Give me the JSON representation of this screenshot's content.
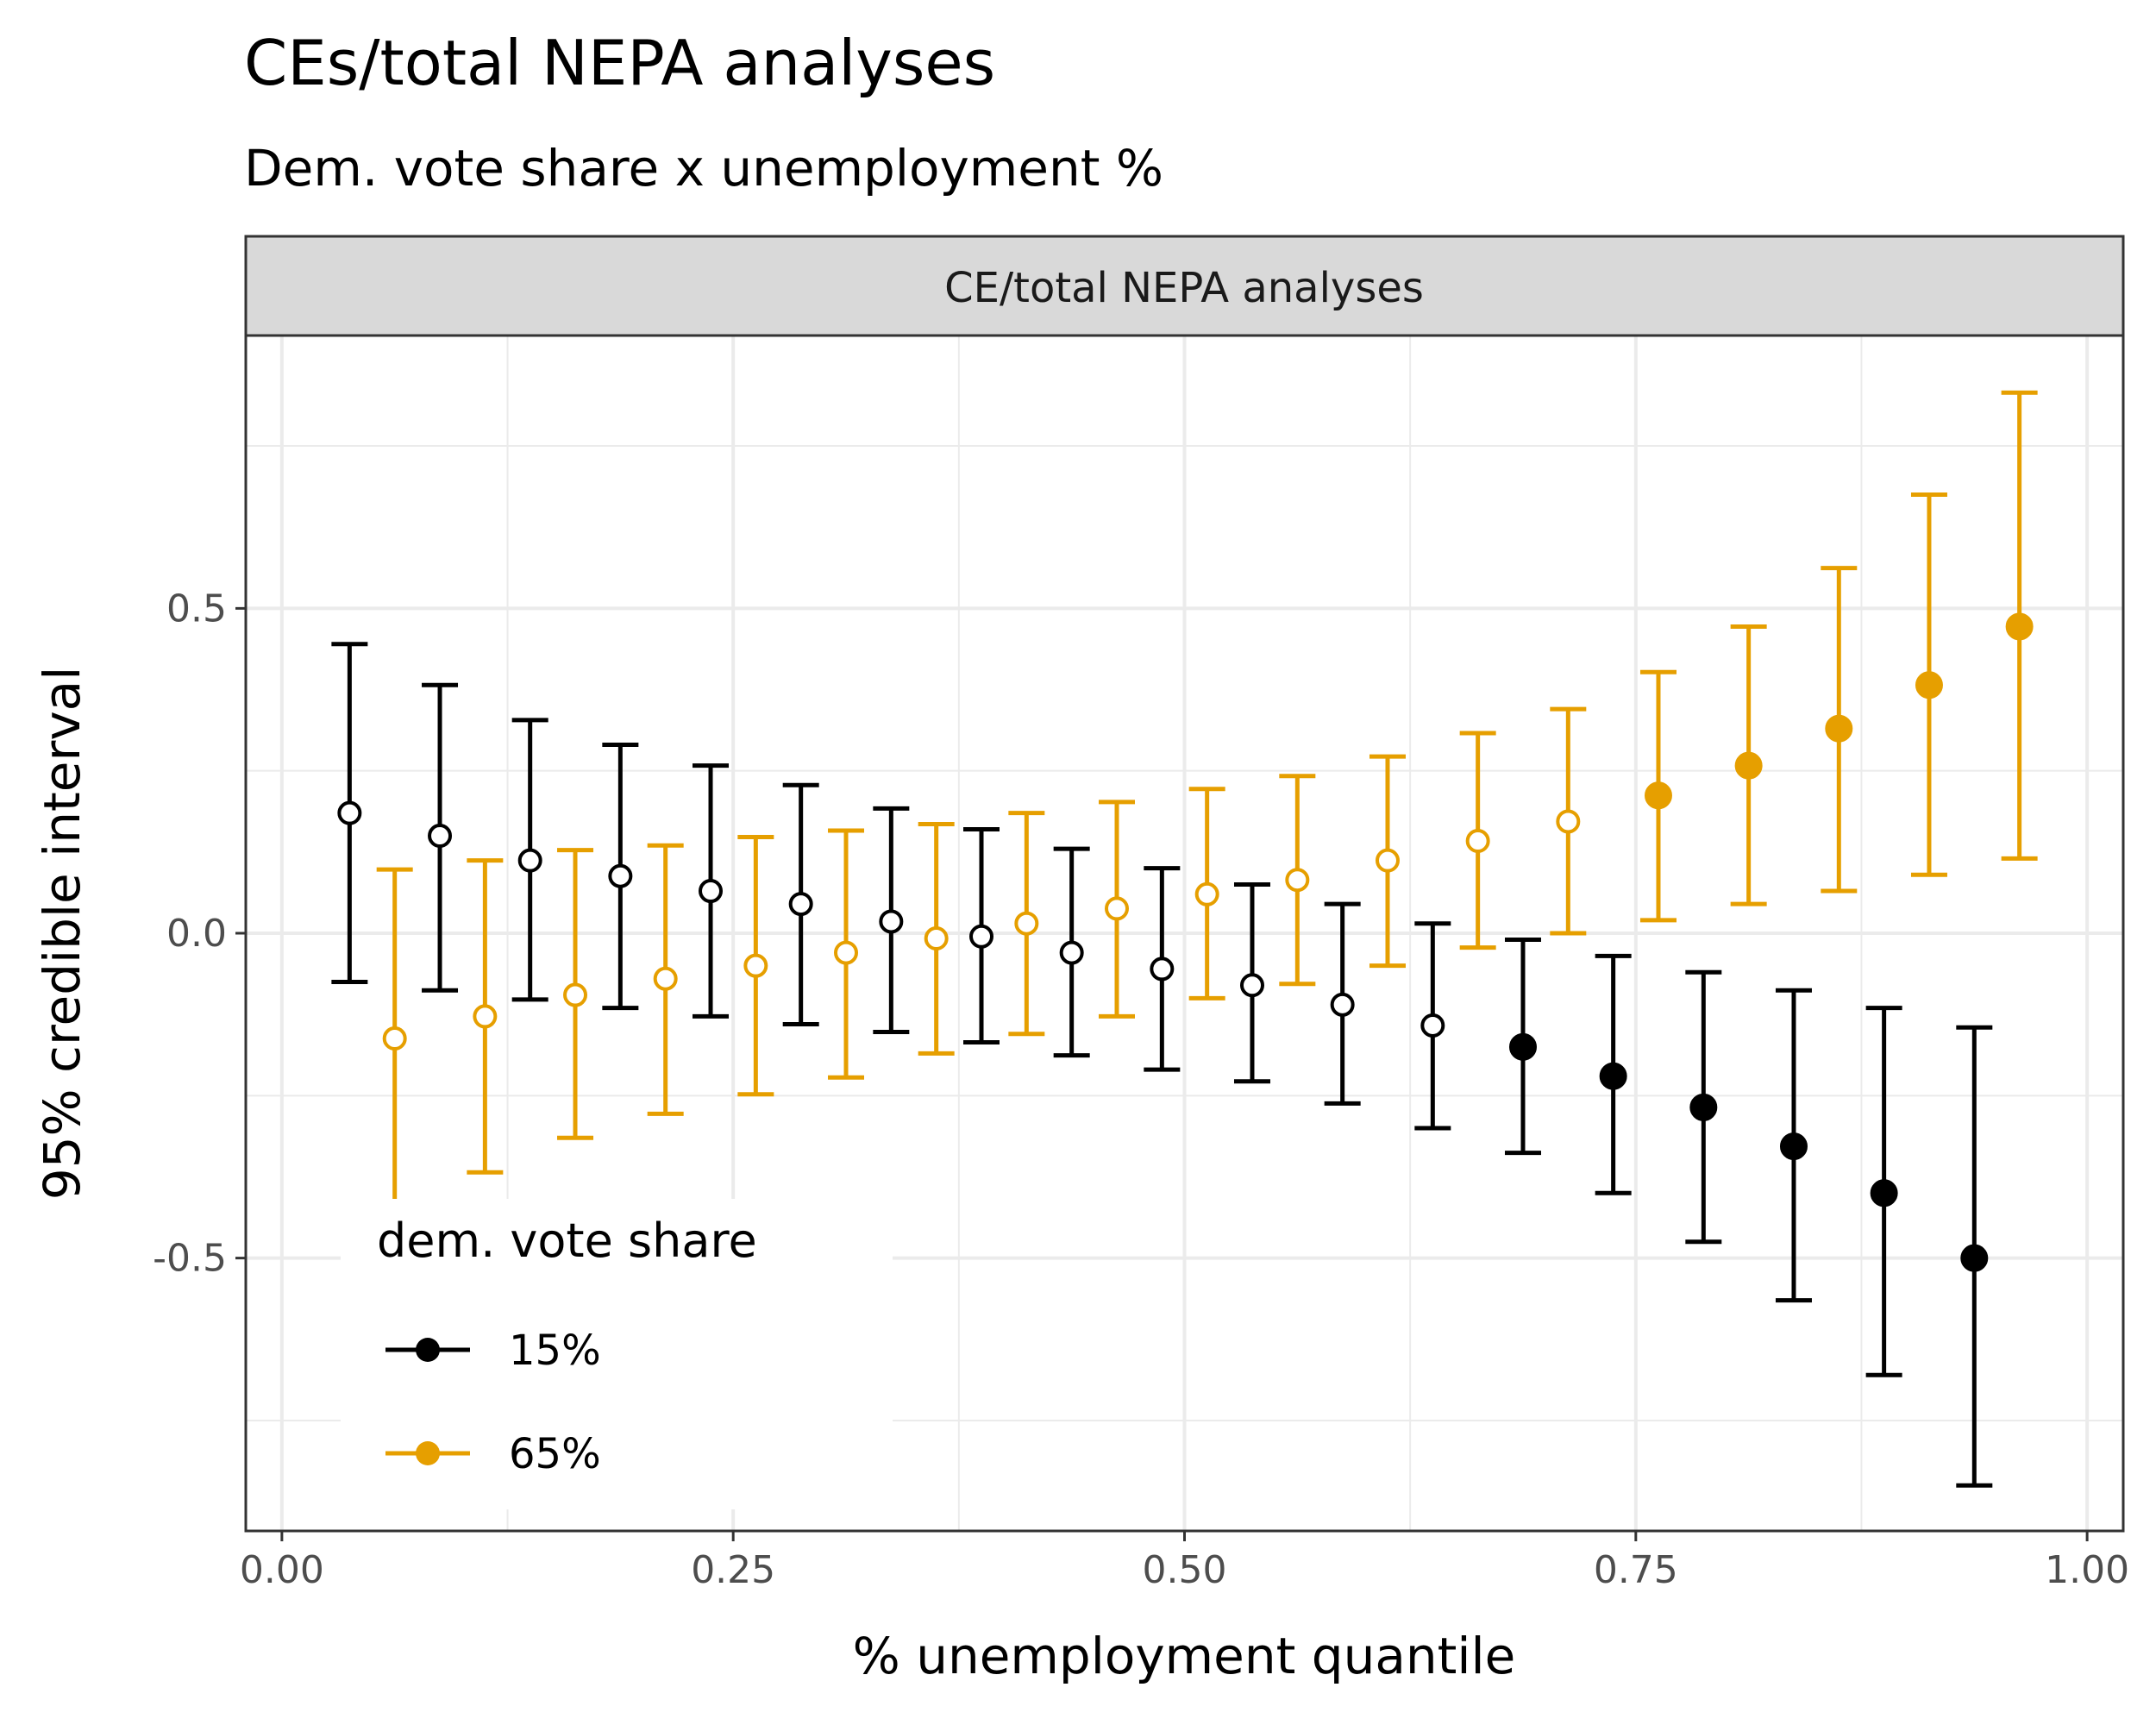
{
  "chart_data": {
    "type": "scatter",
    "subtype": "point-errorbar",
    "title": "CEs/total NEPA analyses",
    "subtitle": "Dem. vote share x unemployment %",
    "facet_label": "CE/total NEPA analyses",
    "xlabel": "% unemployment quantile",
    "ylabel": "95% credible interval",
    "xlim": [
      -0.02,
      1.02
    ],
    "ylim": [
      -0.92,
      0.92
    ],
    "x_ticks": [
      0.0,
      0.25,
      0.5,
      0.75,
      1.0
    ],
    "x_tick_labels": [
      "0.00",
      "0.25",
      "0.50",
      "0.75",
      "1.00"
    ],
    "y_ticks": [
      -0.5,
      0.0,
      0.5
    ],
    "y_tick_labels": [
      "-0.5",
      "0.0",
      "0.5"
    ],
    "grid": true,
    "legend": {
      "title": "dem. vote share",
      "position": "bottom-left",
      "entries": [
        "15%",
        "65%"
      ]
    },
    "series": [
      {
        "name": "15%",
        "color": "#000000",
        "x": [
          0.0375,
          0.0875,
          0.1375,
          0.1875,
          0.2375,
          0.2875,
          0.3375,
          0.3875,
          0.4375,
          0.4875,
          0.5375,
          0.5875,
          0.6375,
          0.6875,
          0.7375,
          0.7875,
          0.8375,
          0.8875,
          0.9375
        ],
        "y": [
          0.185,
          0.15,
          0.112,
          0.088,
          0.065,
          0.045,
          0.018,
          -0.005,
          -0.03,
          -0.055,
          -0.08,
          -0.11,
          -0.142,
          -0.175,
          -0.22,
          -0.268,
          -0.328,
          -0.4,
          -0.5
        ],
        "lower": [
          -0.075,
          -0.088,
          -0.102,
          -0.115,
          -0.128,
          -0.14,
          -0.152,
          -0.168,
          -0.188,
          -0.21,
          -0.228,
          -0.262,
          -0.3,
          -0.338,
          -0.4,
          -0.475,
          -0.565,
          -0.68,
          -0.85
        ],
        "upper": [
          0.445,
          0.382,
          0.328,
          0.29,
          0.258,
          0.228,
          0.192,
          0.16,
          0.13,
          0.1,
          0.075,
          0.045,
          0.015,
          -0.01,
          -0.035,
          -0.06,
          -0.088,
          -0.115,
          -0.145
        ],
        "filled": [
          false,
          false,
          false,
          false,
          false,
          false,
          false,
          false,
          false,
          false,
          false,
          false,
          false,
          true,
          true,
          true,
          true,
          true,
          true
        ]
      },
      {
        "name": "65%",
        "color": "#E69F00",
        "x": [
          0.0625,
          0.1125,
          0.1625,
          0.2125,
          0.2625,
          0.3125,
          0.3625,
          0.4125,
          0.4625,
          0.5125,
          0.5625,
          0.6125,
          0.6625,
          0.7125,
          0.7625,
          0.8125,
          0.8625,
          0.9125,
          0.9625
        ],
        "y": [
          -0.162,
          -0.128,
          -0.095,
          -0.07,
          -0.05,
          -0.03,
          -0.008,
          0.015,
          0.038,
          0.06,
          0.082,
          0.112,
          0.142,
          0.172,
          0.212,
          0.258,
          0.315,
          0.382,
          0.472
        ],
        "lower": [
          -0.425,
          -0.368,
          -0.315,
          -0.278,
          -0.248,
          -0.222,
          -0.185,
          -0.155,
          -0.128,
          -0.1,
          -0.078,
          -0.05,
          -0.022,
          0.0,
          0.02,
          0.045,
          0.065,
          0.09,
          0.115
        ],
        "upper": [
          0.098,
          0.112,
          0.128,
          0.135,
          0.148,
          0.158,
          0.168,
          0.185,
          0.202,
          0.222,
          0.242,
          0.272,
          0.308,
          0.345,
          0.402,
          0.472,
          0.562,
          0.675,
          0.832
        ],
        "filled": [
          false,
          false,
          false,
          false,
          false,
          false,
          false,
          false,
          false,
          false,
          false,
          false,
          false,
          false,
          true,
          true,
          true,
          true,
          true
        ]
      }
    ]
  }
}
